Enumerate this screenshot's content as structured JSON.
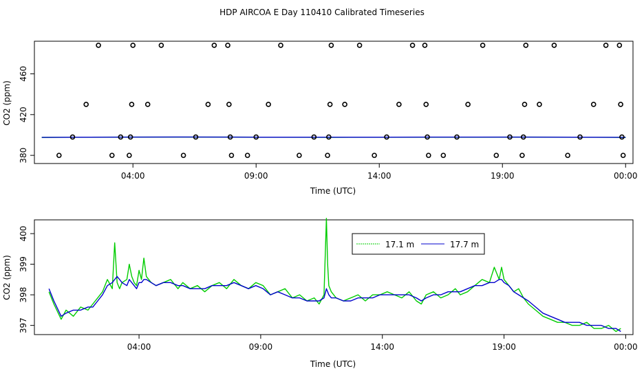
{
  "figure": {
    "title": "HDP AIRCOA E  Day 110410  Calibrated Timeseries"
  },
  "chart_data": [
    {
      "type": "scatter",
      "xlabel": "Time (UTC)",
      "ylabel": "CO2 (ppm)",
      "x_unit": "hour of day",
      "xlim": [
        0,
        24.3
      ],
      "ylim": [
        372,
        492
      ],
      "xticks": [
        {
          "value": 4,
          "label": "04:00"
        },
        {
          "value": 9,
          "label": "09:00"
        },
        {
          "value": 14,
          "label": "14:00"
        },
        {
          "value": 19,
          "label": "19:00"
        },
        {
          "value": 24,
          "label": "00:00"
        }
      ],
      "yticks": [
        {
          "value": 380,
          "label": "380"
        },
        {
          "value": 420,
          "label": "420"
        },
        {
          "value": 460,
          "label": "460"
        }
      ],
      "points": [
        {
          "x": 1.0,
          "y": 380
        },
        {
          "x": 1.55,
          "y": 398
        },
        {
          "x": 2.1,
          "y": 430
        },
        {
          "x": 2.6,
          "y": 488
        },
        {
          "x": 3.15,
          "y": 380
        },
        {
          "x": 3.5,
          "y": 398
        },
        {
          "x": 3.85,
          "y": 380
        },
        {
          "x": 3.9,
          "y": 398
        },
        {
          "x": 3.95,
          "y": 430
        },
        {
          "x": 4.0,
          "y": 488
        },
        {
          "x": 4.6,
          "y": 430
        },
        {
          "x": 5.15,
          "y": 488
        },
        {
          "x": 6.05,
          "y": 380
        },
        {
          "x": 6.55,
          "y": 398
        },
        {
          "x": 7.05,
          "y": 430
        },
        {
          "x": 7.3,
          "y": 488
        },
        {
          "x": 7.85,
          "y": 488
        },
        {
          "x": 7.9,
          "y": 430
        },
        {
          "x": 7.95,
          "y": 398
        },
        {
          "x": 8.0,
          "y": 380
        },
        {
          "x": 8.65,
          "y": 380
        },
        {
          "x": 9.0,
          "y": 398
        },
        {
          "x": 9.5,
          "y": 430
        },
        {
          "x": 10.0,
          "y": 488
        },
        {
          "x": 10.75,
          "y": 380
        },
        {
          "x": 11.35,
          "y": 398
        },
        {
          "x": 11.9,
          "y": 380
        },
        {
          "x": 11.95,
          "y": 398
        },
        {
          "x": 12.0,
          "y": 430
        },
        {
          "x": 12.05,
          "y": 488
        },
        {
          "x": 12.6,
          "y": 430
        },
        {
          "x": 13.2,
          "y": 488
        },
        {
          "x": 13.8,
          "y": 380
        },
        {
          "x": 14.3,
          "y": 398
        },
        {
          "x": 14.8,
          "y": 430
        },
        {
          "x": 15.35,
          "y": 488
        },
        {
          "x": 15.85,
          "y": 488
        },
        {
          "x": 15.9,
          "y": 430
        },
        {
          "x": 15.95,
          "y": 398
        },
        {
          "x": 16.0,
          "y": 380
        },
        {
          "x": 16.6,
          "y": 380
        },
        {
          "x": 17.15,
          "y": 398
        },
        {
          "x": 17.6,
          "y": 430
        },
        {
          "x": 18.2,
          "y": 488
        },
        {
          "x": 18.75,
          "y": 380
        },
        {
          "x": 19.3,
          "y": 398
        },
        {
          "x": 19.8,
          "y": 380
        },
        {
          "x": 19.85,
          "y": 398
        },
        {
          "x": 19.9,
          "y": 430
        },
        {
          "x": 19.95,
          "y": 488
        },
        {
          "x": 20.5,
          "y": 430
        },
        {
          "x": 21.1,
          "y": 488
        },
        {
          "x": 21.65,
          "y": 380
        },
        {
          "x": 22.15,
          "y": 398
        },
        {
          "x": 22.7,
          "y": 430
        },
        {
          "x": 23.2,
          "y": 488
        },
        {
          "x": 23.75,
          "y": 488
        },
        {
          "x": 23.8,
          "y": 430
        },
        {
          "x": 23.85,
          "y": 398
        },
        {
          "x": 23.9,
          "y": 380
        }
      ],
      "series": [
        {
          "name": "17.1 m",
          "color": "#00cc00",
          "x": [
            0.3,
            2,
            4,
            6,
            8,
            10,
            12,
            14,
            16,
            18,
            20,
            22,
            24
          ],
          "y": [
            397.6,
            397.8,
            397.9,
            397.9,
            397.9,
            397.8,
            397.7,
            397.8,
            397.8,
            397.8,
            397.9,
            397.8,
            397.6
          ]
        },
        {
          "name": "17.7 m",
          "color": "#0000cc",
          "x": [
            0.3,
            2,
            4,
            6,
            8,
            10,
            12,
            14,
            16,
            18,
            20,
            22,
            24
          ],
          "y": [
            397.7,
            397.8,
            397.9,
            398.0,
            397.9,
            397.8,
            397.8,
            397.8,
            397.9,
            397.9,
            397.9,
            397.8,
            397.7
          ]
        }
      ]
    },
    {
      "type": "line",
      "xlabel": "Time (UTC)",
      "ylabel": "CO2 (ppm)",
      "x_unit": "hour of day",
      "xlim": [
        -0.3,
        24.3
      ],
      "ylim": [
        396.7,
        400.45
      ],
      "xticks": [
        {
          "value": 4,
          "label": "04:00"
        },
        {
          "value": 9,
          "label": "09:00"
        },
        {
          "value": 14,
          "label": "14:00"
        },
        {
          "value": 19,
          "label": "19:00"
        },
        {
          "value": 24,
          "label": "00:00"
        }
      ],
      "yticks": [
        {
          "value": 397,
          "label": "397"
        },
        {
          "value": 398,
          "label": "398"
        },
        {
          "value": 399,
          "label": "399"
        },
        {
          "value": 400,
          "label": "400"
        }
      ],
      "legend": {
        "position": "top-center-right"
      },
      "series": [
        {
          "name": "17.1 m",
          "color": "#00cc00",
          "x": [
            0.3,
            0.5,
            0.8,
            1.0,
            1.3,
            1.6,
            1.9,
            2.1,
            2.3,
            2.5,
            2.7,
            2.9,
            3.0,
            3.1,
            3.2,
            3.3,
            3.5,
            3.6,
            3.7,
            3.8,
            3.9,
            4.0,
            4.1,
            4.2,
            4.3,
            4.5,
            4.7,
            5.0,
            5.3,
            5.6,
            5.8,
            6.1,
            6.4,
            6.7,
            7.0,
            7.3,
            7.6,
            7.9,
            8.2,
            8.5,
            8.8,
            9.1,
            9.4,
            9.7,
            10.0,
            10.3,
            10.6,
            10.9,
            11.2,
            11.4,
            11.6,
            11.7,
            11.75,
            11.8,
            11.9,
            12.1,
            12.4,
            12.7,
            13.0,
            13.3,
            13.6,
            13.9,
            14.2,
            14.5,
            14.8,
            15.1,
            15.4,
            15.6,
            15.8,
            16.1,
            16.4,
            16.7,
            17.0,
            17.2,
            17.5,
            17.8,
            18.1,
            18.4,
            18.6,
            18.8,
            18.9,
            19.0,
            19.2,
            19.4,
            19.6,
            19.8,
            20.0,
            20.3,
            20.6,
            20.9,
            21.2,
            21.5,
            21.8,
            22.1,
            22.4,
            22.7,
            23.0,
            23.3,
            23.6,
            23.8
          ],
          "y": [
            398.1,
            397.7,
            397.2,
            397.5,
            397.3,
            397.6,
            397.5,
            397.7,
            397.9,
            398.1,
            398.5,
            398.2,
            399.7,
            398.4,
            398.2,
            398.4,
            398.5,
            399.0,
            398.6,
            398.4,
            398.3,
            398.8,
            398.5,
            399.2,
            398.6,
            398.4,
            398.3,
            398.4,
            398.5,
            398.2,
            398.4,
            398.2,
            398.3,
            398.1,
            398.3,
            398.4,
            398.2,
            398.5,
            398.3,
            398.2,
            398.4,
            398.3,
            398.0,
            398.1,
            398.2,
            397.9,
            398.0,
            397.8,
            397.9,
            397.7,
            398.0,
            400.5,
            399.0,
            398.3,
            398.1,
            397.9,
            397.8,
            397.9,
            398.0,
            397.8,
            398.0,
            398.0,
            398.1,
            398.0,
            397.9,
            398.1,
            397.8,
            397.7,
            398.0,
            398.1,
            397.9,
            398.0,
            398.2,
            398.0,
            398.1,
            398.3,
            398.5,
            398.4,
            398.9,
            398.5,
            398.9,
            398.5,
            398.3,
            398.1,
            398.2,
            397.9,
            397.7,
            397.5,
            397.3,
            397.2,
            397.1,
            397.1,
            397.0,
            397.0,
            397.1,
            396.9,
            396.9,
            397.0,
            396.8,
            396.9
          ]
        },
        {
          "name": "17.7 m",
          "color": "#0000cc",
          "x": [
            0.3,
            0.5,
            0.8,
            1.0,
            1.3,
            1.6,
            1.9,
            2.1,
            2.3,
            2.5,
            2.7,
            2.9,
            3.0,
            3.1,
            3.2,
            3.3,
            3.5,
            3.6,
            3.7,
            3.8,
            3.9,
            4.0,
            4.1,
            4.2,
            4.3,
            4.5,
            4.7,
            5.0,
            5.3,
            5.6,
            5.8,
            6.1,
            6.4,
            6.7,
            7.0,
            7.3,
            7.6,
            7.9,
            8.2,
            8.5,
            8.8,
            9.1,
            9.4,
            9.7,
            10.0,
            10.3,
            10.6,
            10.9,
            11.2,
            11.4,
            11.6,
            11.7,
            11.75,
            11.8,
            11.9,
            12.1,
            12.4,
            12.7,
            13.0,
            13.3,
            13.6,
            13.9,
            14.2,
            14.5,
            14.8,
            15.1,
            15.4,
            15.6,
            15.8,
            16.1,
            16.4,
            16.7,
            17.0,
            17.2,
            17.5,
            17.8,
            18.1,
            18.4,
            18.6,
            18.8,
            18.9,
            19.0,
            19.2,
            19.4,
            19.6,
            19.8,
            20.0,
            20.3,
            20.6,
            20.9,
            21.2,
            21.5,
            21.8,
            22.1,
            22.4,
            22.7,
            23.0,
            23.3,
            23.6,
            23.8
          ],
          "y": [
            398.2,
            397.8,
            397.3,
            397.4,
            397.5,
            397.5,
            397.6,
            397.6,
            397.8,
            398.0,
            398.3,
            398.4,
            398.5,
            398.6,
            398.5,
            398.4,
            398.3,
            398.5,
            398.4,
            398.3,
            398.2,
            398.4,
            398.4,
            398.5,
            398.5,
            398.4,
            398.3,
            398.4,
            398.4,
            398.3,
            398.3,
            398.2,
            398.2,
            398.2,
            398.3,
            398.3,
            398.3,
            398.4,
            398.3,
            398.2,
            398.3,
            398.2,
            398.0,
            398.1,
            398.0,
            397.9,
            397.9,
            397.8,
            397.8,
            397.8,
            397.9,
            398.2,
            398.1,
            398.0,
            397.9,
            397.9,
            397.8,
            397.8,
            397.9,
            397.9,
            397.9,
            398.0,
            398.0,
            398.0,
            398.0,
            398.0,
            397.9,
            397.8,
            397.9,
            398.0,
            398.0,
            398.1,
            398.1,
            398.1,
            398.2,
            398.3,
            398.3,
            398.4,
            398.4,
            398.5,
            398.5,
            398.4,
            398.3,
            398.1,
            398.0,
            397.9,
            397.8,
            397.6,
            397.4,
            397.3,
            397.2,
            397.1,
            397.1,
            397.1,
            397.0,
            397.0,
            397.0,
            396.9,
            396.9,
            396.8
          ]
        }
      ]
    }
  ]
}
